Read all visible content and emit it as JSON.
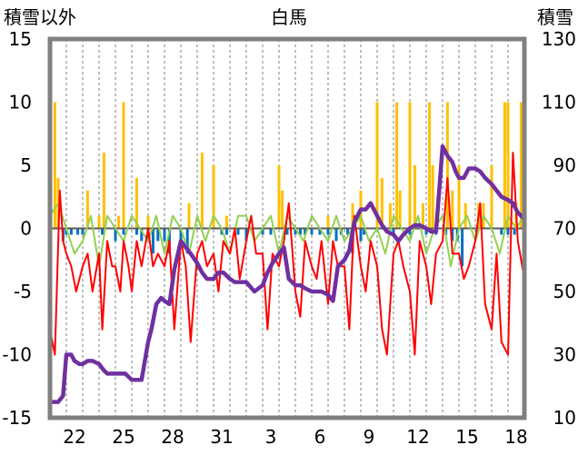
{
  "chart_data": {
    "type": "line",
    "title": "白馬",
    "y_left_label": "積雪以外",
    "y_right_label": "積雪",
    "y_left_ticks": [
      "15",
      "10",
      "5",
      "0",
      "-5",
      "-10",
      "-15"
    ],
    "y_right_ticks": [
      "130",
      "110",
      "90",
      "70",
      "50",
      "30",
      "10"
    ],
    "x_ticks": [
      "22",
      "25",
      "28",
      "31",
      "3",
      "6",
      "9",
      "12",
      "15",
      "18"
    ],
    "ylim_left": [
      -15,
      15
    ],
    "ylim_right": [
      10,
      130
    ],
    "x_range_days": [
      0,
      29
    ],
    "x_tick_days": [
      1.5,
      4.5,
      7.5,
      10.5,
      13.5,
      16.5,
      19.5,
      22.5,
      25.5,
      28.5
    ],
    "grid": "vertical dashed, one per day",
    "colors": {
      "temperature": "#ff0000",
      "snow_depth": "#7030a0",
      "snowfall": "#ffc000",
      "depth_decrease": "#0070c0",
      "other": "#92d050",
      "frame": "#808080"
    },
    "series": [
      {
        "key": "snow_depth",
        "axis": "right",
        "x": [
          0,
          0.5,
          0.8,
          1.0,
          1.3,
          1.5,
          1.8,
          2.0,
          2.3,
          2.6,
          3.0,
          3.3,
          3.5,
          3.8,
          4.0,
          4.3,
          4.6,
          5.0,
          5.3,
          5.6,
          5.8,
          6.0,
          6.2,
          6.5,
          6.8,
          7.0,
          7.3,
          7.6,
          8.0,
          8.3,
          8.6,
          9.0,
          9.3,
          9.6,
          10.0,
          10.3,
          10.6,
          11.0,
          11.3,
          11.6,
          12.0,
          12.5,
          13.0,
          13.3,
          13.6,
          14.0,
          14.3,
          14.6,
          15.0,
          15.3,
          15.6,
          16.0,
          16.3,
          16.6,
          17.0,
          17.3,
          17.6,
          18.0,
          18.3,
          18.6,
          19.0,
          19.3,
          19.6,
          20.0,
          20.3,
          20.6,
          21.0,
          21.3,
          21.6,
          22.0,
          22.3,
          22.6,
          23.0,
          23.3,
          23.6,
          24.0,
          24.3,
          24.6,
          24.8,
          25.0,
          25.3,
          25.6,
          26.0,
          26.3,
          26.6,
          27.0,
          27.3,
          27.6,
          28.0,
          28.3,
          28.6,
          29.0
        ],
        "values": [
          15,
          15,
          17,
          30,
          30,
          28,
          27,
          27,
          28,
          28,
          27,
          25,
          24,
          24,
          24,
          24,
          24,
          22,
          22,
          22,
          28,
          34,
          38,
          46,
          48,
          47,
          46,
          57,
          66,
          64,
          62,
          59,
          56,
          54,
          54,
          56,
          56,
          54,
          53,
          53,
          53,
          50,
          52,
          56,
          59,
          62,
          64,
          54,
          52,
          52,
          51,
          50,
          50,
          50,
          49,
          47,
          58,
          60,
          63,
          72,
          76,
          76,
          78,
          74,
          71,
          69,
          68,
          66,
          68,
          70,
          71,
          71,
          70,
          69,
          69,
          96,
          93,
          91,
          88,
          86,
          86,
          89,
          89,
          88,
          86,
          84,
          82,
          80,
          79,
          78,
          75,
          73
        ]
      },
      {
        "key": "temperature",
        "axis": "left",
        "x": [
          0,
          0.3,
          0.6,
          0.8,
          1.0,
          1.3,
          1.6,
          2.0,
          2.3,
          2.6,
          3.0,
          3.2,
          3.5,
          3.8,
          4.0,
          4.3,
          4.5,
          4.8,
          5.0,
          5.3,
          5.6,
          6.0,
          6.3,
          6.6,
          7.0,
          7.3,
          7.6,
          8.0,
          8.3,
          8.6,
          9.0,
          9.3,
          9.6,
          10.0,
          10.3,
          10.6,
          11.0,
          11.3,
          11.6,
          12.0,
          12.3,
          12.6,
          13.0,
          13.3,
          13.6,
          14.0,
          14.3,
          14.6,
          15.0,
          15.3,
          15.6,
          16.0,
          16.3,
          16.6,
          17.0,
          17.3,
          17.6,
          18.0,
          18.3,
          18.6,
          19.0,
          19.3,
          19.6,
          20.0,
          20.3,
          20.6,
          21.0,
          21.3,
          21.6,
          22.0,
          22.3,
          22.6,
          23.0,
          23.3,
          23.6,
          24.0,
          24.3,
          24.6,
          25.0,
          25.3,
          25.6,
          26.0,
          26.3,
          26.6,
          27.0,
          27.3,
          27.6,
          28.0,
          28.3,
          28.6,
          29.0
        ],
        "values": [
          -8,
          -10,
          3,
          -1,
          -2,
          -3,
          -5,
          -3,
          -2,
          -5,
          -2,
          -8,
          -1,
          -3,
          -3,
          -5,
          -1,
          -3,
          -5,
          -1,
          -3,
          0,
          -3,
          -2,
          -3,
          -1,
          -8,
          -1,
          -3,
          -9,
          -2,
          -1,
          -3,
          -2,
          -5,
          -1,
          -2,
          0,
          -4,
          -1,
          1,
          -2,
          -2,
          -8,
          -2,
          -3,
          -1,
          2,
          -5,
          -7,
          -1,
          -3,
          -4,
          -1,
          -6,
          -1,
          -3,
          -3,
          -8,
          1,
          -3,
          -5,
          -1,
          -3,
          -8,
          -10,
          -2,
          -1,
          -3,
          -5,
          -10,
          -1,
          -3,
          -6,
          -2,
          -1,
          4,
          -2,
          -2,
          -4,
          -3,
          -1,
          2,
          -6,
          -8,
          -2,
          -9,
          -10,
          6,
          -1,
          -4
        ]
      },
      {
        "key": "other",
        "axis": "left",
        "x": [
          0,
          0.5,
          1.0,
          1.5,
          2.0,
          2.5,
          3.0,
          3.5,
          4.0,
          4.5,
          5.0,
          5.5,
          6.0,
          6.5,
          7.0,
          7.5,
          8.0,
          8.5,
          9.0,
          9.5,
          10.0,
          10.5,
          11.0,
          11.5,
          12.0,
          12.5,
          13.0,
          13.5,
          14.0,
          14.5,
          15.0,
          15.5,
          16.0,
          16.5,
          17.0,
          17.5,
          18.0,
          18.5,
          19.0,
          19.5,
          20.0,
          20.5,
          21.0,
          21.5,
          22.0,
          22.5,
          23.0,
          23.5,
          24.0,
          24.5,
          25.0,
          25.5,
          26.0,
          26.5,
          27.0,
          27.5,
          28.0,
          28.5,
          29.0
        ],
        "values": [
          1,
          2,
          0,
          -2,
          -1,
          1,
          -3,
          1,
          0,
          -1,
          1,
          0,
          -1,
          1,
          -2,
          1,
          0,
          -2,
          1,
          -1,
          1,
          0,
          -2,
          1,
          1,
          -1,
          0,
          1,
          -2,
          1,
          0,
          -1,
          1,
          0,
          -1,
          1,
          -1,
          0,
          1,
          -1,
          0,
          -2,
          1,
          0,
          -1,
          1,
          -2,
          0,
          1,
          -3,
          0,
          1,
          -1,
          1,
          0,
          -2,
          1,
          0,
          1
        ]
      }
    ],
    "bars": [
      {
        "key": "snowfall",
        "axis": "left",
        "x": [
          0.3,
          0.5,
          2.3,
          3.0,
          3.3,
          4.2,
          4.5,
          5.3,
          6.0,
          8.5,
          9.3,
          10.0,
          10.8,
          14.0,
          14.2,
          17.0,
          18.5,
          19.0,
          20.0,
          20.3,
          20.8,
          21.2,
          21.4,
          22.0,
          22.3,
          22.8,
          23.2,
          23.4,
          24.3,
          24.6,
          25.0,
          25.4,
          26.2,
          26.5,
          27.0,
          27.8,
          28.0,
          28.5,
          28.8
        ],
        "values": [
          10,
          4,
          3,
          1,
          6,
          1,
          10,
          4,
          1,
          2,
          6,
          5,
          1,
          5,
          3,
          1,
          2,
          3,
          10,
          4,
          2,
          10,
          3,
          10,
          5,
          2,
          10,
          5,
          10,
          3,
          5,
          2,
          2,
          2,
          5,
          10,
          10,
          2,
          10
        ]
      },
      {
        "key": "depth_decrease",
        "axis": "left",
        "x": [
          0.8,
          1.0,
          1.3,
          1.7,
          2.0,
          3.2,
          4.0,
          4.5,
          5.3,
          5.6,
          6.0,
          6.3,
          6.6,
          7.0,
          7.3,
          8.0,
          8.4,
          10.5,
          10.8,
          11.5,
          12.0,
          13.0,
          13.5,
          14.5,
          15.0,
          15.3,
          15.6,
          16.0,
          16.5,
          17.0,
          17.5,
          17.8,
          18.2,
          18.5,
          19.0,
          19.2,
          21.0,
          22.0,
          23.0,
          23.6,
          24.2,
          24.6,
          24.9,
          25.2,
          27.6,
          28.0,
          28.4
        ],
        "values": [
          -1,
          -0.5,
          -0.5,
          -0.5,
          -0.5,
          -0.5,
          -1,
          -0.5,
          -0.5,
          -1,
          -1,
          -2,
          -1,
          -1,
          -2,
          -1,
          -2,
          -0.5,
          -0.5,
          -0.5,
          -1,
          -0.5,
          -0.5,
          -0.5,
          -0.5,
          -0.5,
          -0.5,
          -0.5,
          -0.5,
          -0.5,
          -1,
          -0.5,
          -0.5,
          -2,
          -1,
          -0.5,
          -0.5,
          -0.5,
          -0.5,
          -0.5,
          -0.5,
          -1,
          -1,
          -3,
          -0.5,
          -0.5,
          -0.5
        ]
      }
    ]
  }
}
